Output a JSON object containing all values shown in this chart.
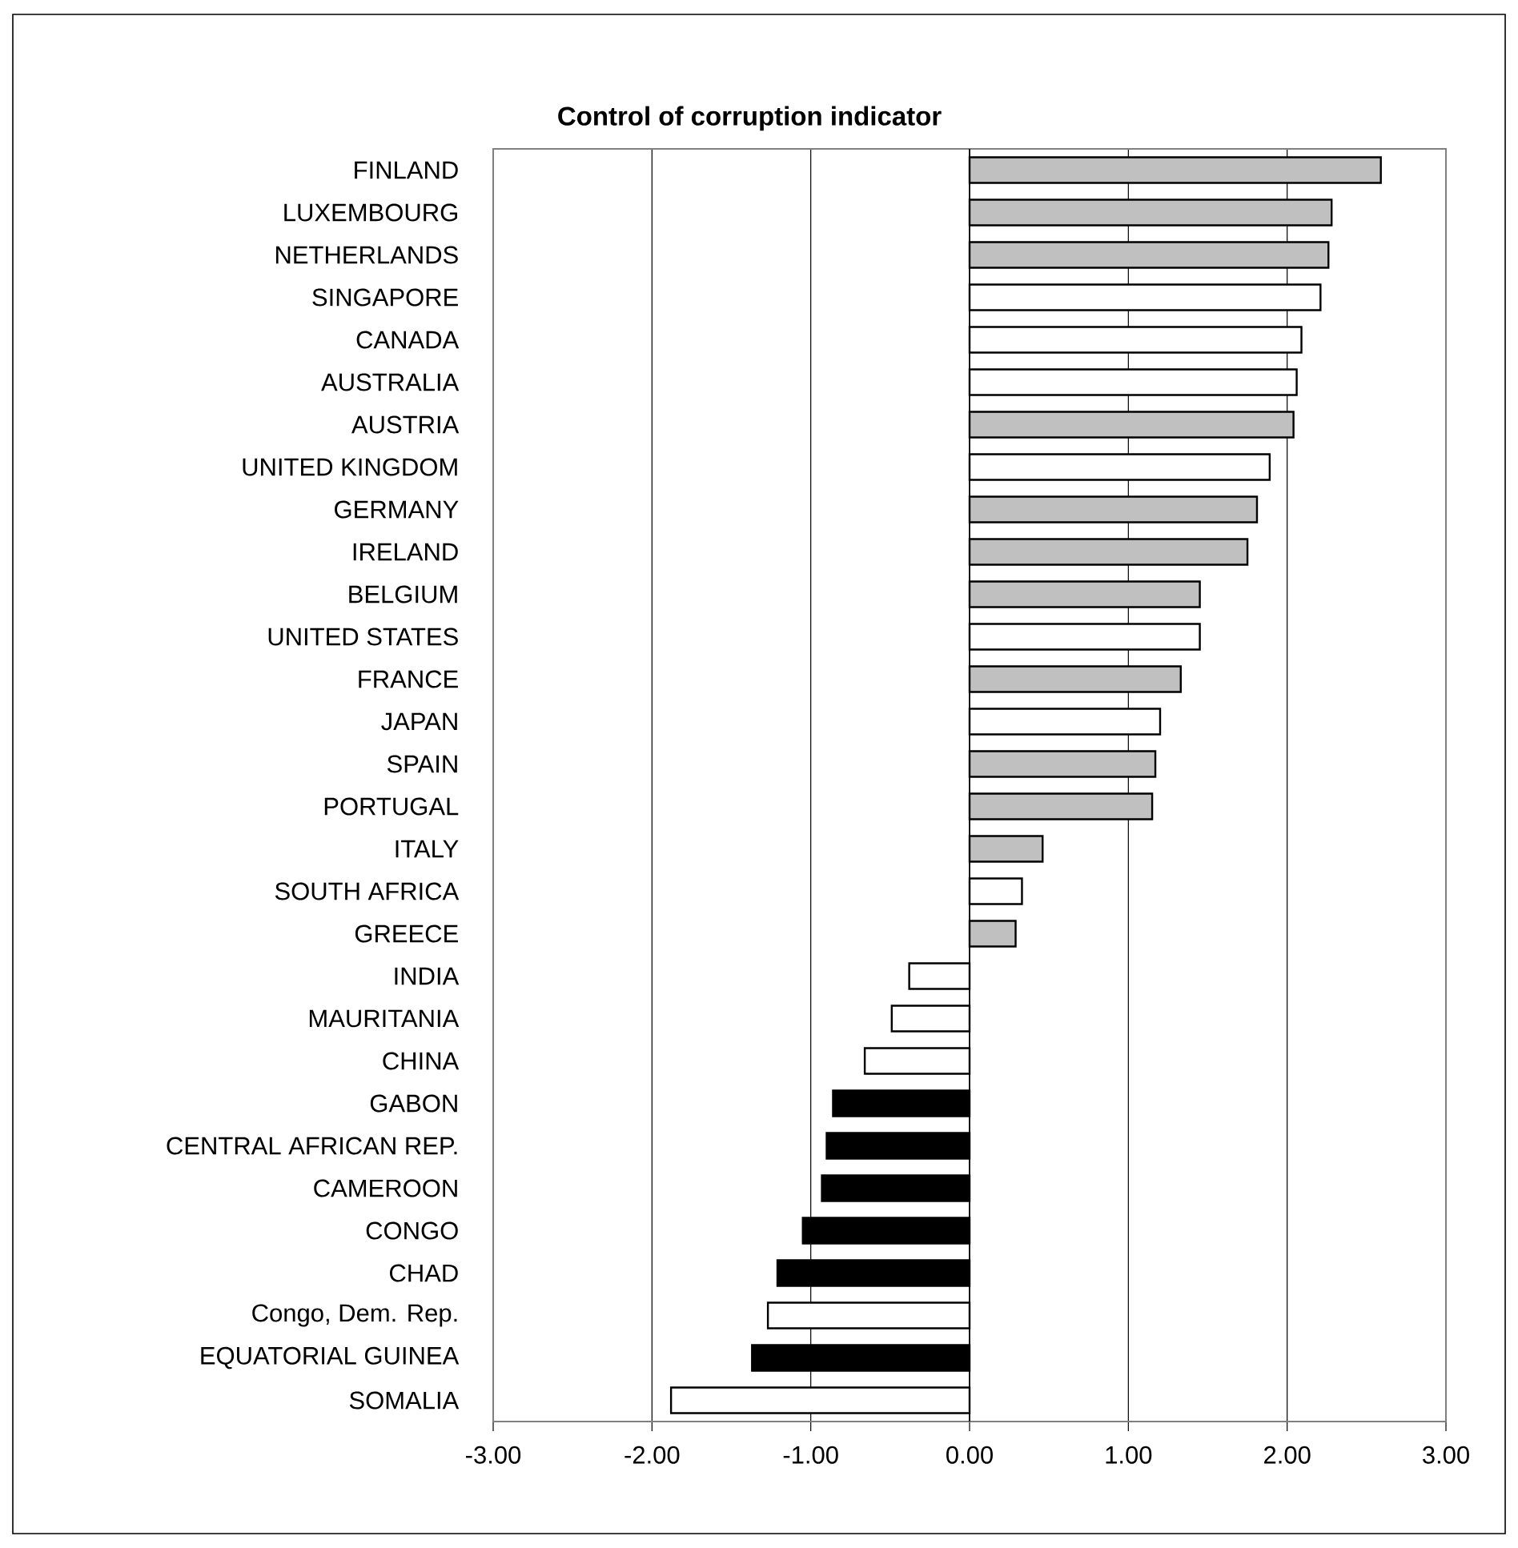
{
  "chart_data": {
    "type": "bar",
    "orientation": "horizontal",
    "title": "Control of corruption indicator",
    "categories": [
      "FINLAND",
      "LUXEMBOURG",
      "NETHERLANDS",
      "SINGAPORE",
      "CANADA",
      "AUSTRALIA",
      "AUSTRIA",
      "UNITED KINGDOM",
      "GERMANY",
      "IRELAND",
      "BELGIUM",
      "UNITED STATES",
      "FRANCE",
      "JAPAN",
      "SPAIN",
      "PORTUGAL",
      "ITALY",
      "SOUTH AFRICA",
      "GREECE",
      "INDIA",
      "MAURITANIA",
      "CHINA",
      "GABON",
      "CENTRAL AFRICAN REP.",
      "CAMEROON",
      "CONGO",
      "CHAD",
      "Congo, Dem. Rep.",
      "EQUATORIAL GUINEA",
      "SOMALIA"
    ],
    "values": [
      2.59,
      2.28,
      2.26,
      2.21,
      2.09,
      2.06,
      2.04,
      1.89,
      1.81,
      1.75,
      1.45,
      1.45,
      1.33,
      1.2,
      1.17,
      1.15,
      0.46,
      0.33,
      0.29,
      -0.38,
      -0.49,
      -0.66,
      -0.86,
      -0.9,
      -0.93,
      -1.05,
      -1.21,
      -1.27,
      -1.37,
      -1.88
    ],
    "colors": [
      "#c0c0c0",
      "#c0c0c0",
      "#c0c0c0",
      "#ffffff",
      "#ffffff",
      "#ffffff",
      "#c0c0c0",
      "#ffffff",
      "#c0c0c0",
      "#c0c0c0",
      "#c0c0c0",
      "#ffffff",
      "#c0c0c0",
      "#ffffff",
      "#c0c0c0",
      "#c0c0c0",
      "#c0c0c0",
      "#ffffff",
      "#c0c0c0",
      "#ffffff",
      "#ffffff",
      "#ffffff",
      "#000000",
      "#000000",
      "#000000",
      "#000000",
      "#000000",
      "#ffffff",
      "#000000",
      "#ffffff"
    ],
    "xlim": [
      -3,
      3
    ],
    "xticks": [
      {
        "value": -3,
        "label": "-3.00"
      },
      {
        "value": -2,
        "label": "-2.00"
      },
      {
        "value": -1,
        "label": "-1.00"
      },
      {
        "value": 0,
        "label": "0.00"
      },
      {
        "value": 1,
        "label": "1.00"
      },
      {
        "value": 2,
        "label": "2.00"
      },
      {
        "value": 3,
        "label": "3.00"
      }
    ],
    "grid": "x"
  }
}
